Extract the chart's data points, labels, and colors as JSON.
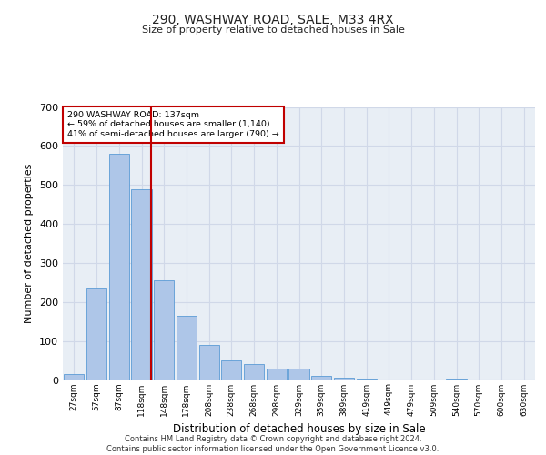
{
  "title1": "290, WASHWAY ROAD, SALE, M33 4RX",
  "title2": "Size of property relative to detached houses in Sale",
  "xlabel": "Distribution of detached houses by size in Sale",
  "ylabel": "Number of detached properties",
  "bar_labels": [
    "27sqm",
    "57sqm",
    "87sqm",
    "118sqm",
    "148sqm",
    "178sqm",
    "208sqm",
    "238sqm",
    "268sqm",
    "298sqm",
    "329sqm",
    "359sqm",
    "389sqm",
    "419sqm",
    "449sqm",
    "479sqm",
    "509sqm",
    "540sqm",
    "570sqm",
    "600sqm",
    "630sqm"
  ],
  "bar_values": [
    15,
    235,
    580,
    490,
    255,
    165,
    90,
    50,
    40,
    30,
    30,
    10,
    5,
    2,
    0,
    0,
    0,
    2,
    0,
    0,
    0
  ],
  "bar_color": "#aec6e8",
  "bar_edge_color": "#5b9bd5",
  "grid_color": "#d0d8e8",
  "bg_color": "#e8eef5",
  "vline_color": "#c00000",
  "annotation_text": "290 WASHWAY ROAD: 137sqm\n← 59% of detached houses are smaller (1,140)\n41% of semi-detached houses are larger (790) →",
  "annotation_box_color": "#c00000",
  "footer": "Contains HM Land Registry data © Crown copyright and database right 2024.\nContains public sector information licensed under the Open Government Licence v3.0.",
  "ylim": [
    0,
    700
  ],
  "yticks": [
    0,
    100,
    200,
    300,
    400,
    500,
    600,
    700
  ]
}
